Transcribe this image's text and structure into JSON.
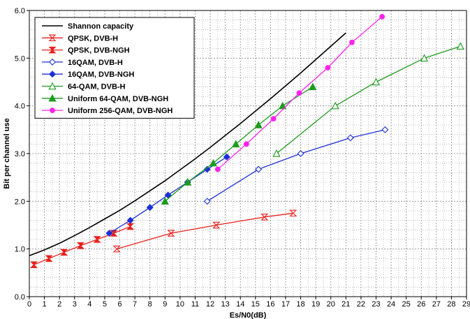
{
  "chart_data": {
    "type": "line",
    "title": "",
    "xlabel": "Es/N0(dB)",
    "ylabel": "Bit per channel use",
    "xlim": [
      0,
      29
    ],
    "ylim": [
      0,
      6
    ],
    "x_ticks": [
      0,
      1,
      2,
      3,
      4,
      5,
      6,
      7,
      8,
      9,
      10,
      11,
      12,
      13,
      14,
      15,
      16,
      17,
      18,
      19,
      20,
      21,
      22,
      23,
      24,
      25,
      26,
      27,
      28,
      29
    ],
    "x_tick_labels": [
      "0",
      "1",
      "2",
      "3",
      "4",
      "5",
      "6",
      "7",
      "8",
      "9",
      "10",
      "11",
      "12",
      "13",
      "14",
      "15",
      "16",
      "17",
      "18",
      "19",
      "20",
      "21",
      "22",
      "23",
      "24",
      "25",
      "26",
      "27",
      "28",
      "29"
    ],
    "y_ticks": [
      0,
      1,
      2,
      3,
      4,
      5,
      6
    ],
    "y_tick_labels": [
      "0.0",
      "1.0",
      "2.0",
      "3.0",
      "4.0",
      "5.0",
      "6.0"
    ],
    "grid": true,
    "legend_position": "top-left",
    "series": [
      {
        "name": "Shannon capacity",
        "color": "#000000",
        "marker": "none",
        "x": [
          0,
          1,
          2,
          3,
          4,
          5,
          6,
          7,
          8,
          9,
          10,
          11,
          12,
          13,
          14,
          15,
          16,
          17,
          18,
          19,
          20,
          21
        ],
        "y": [
          0.86,
          0.98,
          1.12,
          1.28,
          1.45,
          1.63,
          1.81,
          2.01,
          2.22,
          2.43,
          2.66,
          2.89,
          3.13,
          3.38,
          3.63,
          3.89,
          4.15,
          4.42,
          4.69,
          4.97,
          5.25,
          5.53
        ]
      },
      {
        "name": "QPSK, DVB-H",
        "color": "#e8201c",
        "marker": "open-hourglass",
        "x": [
          5.8,
          9.4,
          12.4,
          15.6,
          17.5
        ],
        "y": [
          1.0,
          1.33,
          1.5,
          1.67,
          1.75
        ]
      },
      {
        "name": "QPSK, DVB-NGH",
        "color": "#e8201c",
        "marker": "filled-hourglass",
        "x": [
          0.3,
          1.3,
          2.3,
          3.4,
          4.5,
          5.6,
          6.7
        ],
        "y": [
          0.67,
          0.8,
          0.93,
          1.07,
          1.2,
          1.33,
          1.47
        ]
      },
      {
        "name": "16QAM, DVB-H",
        "color": "#1c2fd8",
        "marker": "open-diamond",
        "x": [
          11.8,
          15.2,
          18.0,
          21.3,
          23.6
        ],
        "y": [
          2.0,
          2.67,
          3.0,
          3.33,
          3.5
        ]
      },
      {
        "name": "16QAM, DVB-NGH",
        "color": "#1c2fd8",
        "marker": "filled-diamond",
        "x": [
          5.3,
          6.7,
          8.0,
          9.2,
          10.5,
          11.8,
          13.1
        ],
        "y": [
          1.33,
          1.6,
          1.87,
          2.13,
          2.4,
          2.67,
          2.93
        ]
      },
      {
        "name": "64-QAM, DVB-H",
        "color": "#1e9b1e",
        "marker": "open-triangle",
        "x": [
          16.4,
          20.3,
          23.0,
          26.2,
          28.6
        ],
        "y": [
          3.0,
          4.0,
          4.5,
          5.0,
          5.25
        ]
      },
      {
        "name": "Uniform 64-QAM, DVB-NGH",
        "color": "#1e9b1e",
        "marker": "filled-triangle",
        "x": [
          9.0,
          10.5,
          12.2,
          13.7,
          15.2,
          16.8,
          18.8
        ],
        "y": [
          2.0,
          2.4,
          2.8,
          3.2,
          3.6,
          4.0,
          4.4
        ]
      },
      {
        "name": "Uniform 256-QAM, DVB-NGH",
        "color": "#ff22ee",
        "marker": "filled-circle",
        "x": [
          12.5,
          14.4,
          16.2,
          17.9,
          19.8,
          21.4,
          23.4
        ],
        "y": [
          2.67,
          3.2,
          3.73,
          4.27,
          4.8,
          5.33,
          5.87
        ]
      }
    ]
  }
}
